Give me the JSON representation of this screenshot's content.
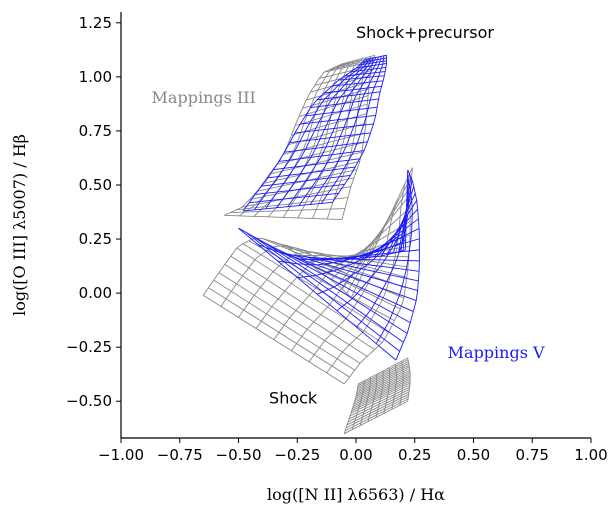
{
  "chart_data": {
    "type": "line",
    "title": "",
    "xlabel": "log([N II] λ6563) / Hα",
    "ylabel": "log([O III] λ5007) / Hβ",
    "xlim": [
      -1.0,
      1.0
    ],
    "ylim": [
      -0.67,
      1.3
    ],
    "xticks": [
      -1.0,
      -0.75,
      -0.5,
      -0.25,
      0.0,
      0.25,
      0.5,
      0.75,
      1.0
    ],
    "xtick_labels": [
      "−1.00",
      "−0.75",
      "−0.50",
      "−0.25",
      "0.00",
      "0.25",
      "0.50",
      "0.75",
      "1.00"
    ],
    "yticks": [
      -0.5,
      -0.25,
      0.0,
      0.25,
      0.5,
      0.75,
      1.0,
      1.25
    ],
    "ytick_labels": [
      "−0.50",
      "−0.25",
      "0.00",
      "0.25",
      "0.50",
      "0.75",
      "1.00",
      "1.25"
    ],
    "grid": false,
    "annotations": [
      {
        "id": "shock_precursor",
        "text": "Shock+precursor",
        "x": 0.0,
        "y": 1.18,
        "color": "#000000"
      },
      {
        "id": "mappings_iii",
        "text": "Mappings III",
        "x": -0.87,
        "y": 0.88,
        "color": "#888888"
      },
      {
        "id": "mappings_v",
        "text": "Mappings V",
        "x": 0.39,
        "y": -0.3,
        "color": "#1a1aff"
      },
      {
        "id": "shock",
        "text": "Shock",
        "x": -0.37,
        "y": -0.51,
        "color": "#000000"
      }
    ],
    "series": [
      {
        "model": "Mappings III",
        "color": "#888888",
        "grids": [
          {
            "region": "shock+precursor",
            "left_curve": [
              [
                -0.56,
                0.36
              ],
              [
                -0.48,
                0.4
              ],
              [
                -0.38,
                0.52
              ],
              [
                -0.3,
                0.66
              ],
              [
                -0.25,
                0.8
              ],
              [
                -0.2,
                0.92
              ],
              [
                -0.14,
                1.02
              ],
              [
                -0.06,
                1.06
              ]
            ],
            "right_curve": [
              [
                -0.06,
                0.34
              ],
              [
                -0.02,
                0.5
              ],
              [
                0.02,
                0.62
              ],
              [
                0.04,
                0.76
              ],
              [
                0.05,
                0.9
              ],
              [
                0.06,
                1.0
              ],
              [
                0.07,
                1.07
              ],
              [
                0.08,
                1.1
              ]
            ]
          },
          {
            "region": "shock",
            "left_curve": [
              [
                -0.65,
                -0.01
              ],
              [
                -0.58,
                0.1
              ],
              [
                -0.5,
                0.22
              ],
              [
                -0.42,
                0.26
              ],
              [
                -0.3,
                0.22
              ],
              [
                -0.18,
                0.12
              ],
              [
                -0.08,
                0.04
              ],
              [
                -0.02,
                -0.02
              ]
            ],
            "right_curve": [
              [
                -0.05,
                -0.42
              ],
              [
                0.02,
                -0.32
              ],
              [
                0.12,
                -0.22
              ],
              [
                0.2,
                -0.05
              ],
              [
                0.22,
                0.1
              ],
              [
                0.23,
                0.25
              ],
              [
                0.23,
                0.45
              ],
              [
                0.24,
                0.58
              ]
            ]
          },
          {
            "region": "shock-tail",
            "left_curve": [
              [
                -0.05,
                -0.65
              ],
              [
                -0.02,
                -0.55
              ],
              [
                0.0,
                -0.48
              ],
              [
                0.01,
                -0.42
              ]
            ],
            "right_curve": [
              [
                0.22,
                -0.5
              ],
              [
                0.23,
                -0.42
              ],
              [
                0.23,
                -0.36
              ],
              [
                0.22,
                -0.3
              ]
            ]
          }
        ]
      },
      {
        "model": "Mappings V",
        "color": "#1a1aff",
        "grids": [
          {
            "region": "shock+precursor",
            "left_curve": [
              [
                -0.48,
                0.38
              ],
              [
                -0.4,
                0.5
              ],
              [
                -0.32,
                0.62
              ],
              [
                -0.25,
                0.76
              ],
              [
                -0.18,
                0.88
              ],
              [
                -0.08,
                0.98
              ],
              [
                0.0,
                1.04
              ],
              [
                0.04,
                1.08
              ]
            ],
            "right_curve": [
              [
                -0.1,
                0.42
              ],
              [
                -0.02,
                0.55
              ],
              [
                0.04,
                0.67
              ],
              [
                0.08,
                0.8
              ],
              [
                0.1,
                0.92
              ],
              [
                0.12,
                1.0
              ],
              [
                0.13,
                1.06
              ],
              [
                0.13,
                1.1
              ]
            ]
          },
          {
            "region": "shock",
            "left_curve": [
              [
                -0.5,
                0.3
              ],
              [
                -0.4,
                0.24
              ],
              [
                -0.3,
                0.18
              ],
              [
                -0.15,
                0.16
              ],
              [
                0.0,
                0.16
              ],
              [
                0.1,
                0.17
              ],
              [
                0.18,
                0.19
              ],
              [
                0.21,
                0.2
              ]
            ],
            "right_curve": [
              [
                0.17,
                -0.31
              ],
              [
                0.22,
                -0.18
              ],
              [
                0.26,
                -0.02
              ],
              [
                0.27,
                0.12
              ],
              [
                0.27,
                0.28
              ],
              [
                0.26,
                0.42
              ],
              [
                0.24,
                0.52
              ],
              [
                0.22,
                0.57
              ]
            ]
          }
        ]
      }
    ]
  }
}
